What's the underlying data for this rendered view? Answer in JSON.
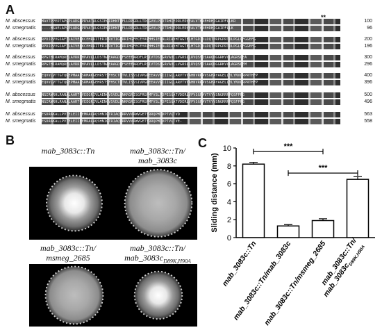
{
  "panels": {
    "a": "A",
    "b": "B",
    "c": "C"
  },
  "alignment": {
    "blocks": [
      {
        "rows": [
          {
            "name": "M. abscessus",
            "seq": "MAVTPPEDTAPGPLADGAPRVATALGSIEGIRHNTVFLLRPGRLLTDCGVVLPLDTRHIEDRLEDVEALVTHAEHDHIGAIPFLLKR",
            "end": "100"
          },
          {
            "name": "M. smegmatis",
            "seq": "----MSAELAPGPLADGAPRVATALGSIEGIRHNTVFLLRPGRLLTDCGVVLPLDTRHIEDRLEDVEALVTHAEHDHIGAIPFLLK",
            "end": "96"
          }
        ]
      },
      {
        "rows": [
          {
            "name": "M. abscessus",
            "seq": "RPDIPVVGSAFTLAIVEAKCEHRRITERIPRVTIGERRIHGFECEYAVHHSIEDALRIAVHTAGTELHTGDIKLDQTPRPGPRTDLPGLGFGGEFG",
            "end": "200"
          },
          {
            "name": "M. smegmatis",
            "seq": "RPDIPVVGSAFTLAIVEAKCEHRRITERIPRVTIGERRIHGFECEYAVHHSIEDALRIAVHTAGTELHTGDIKLDQTPRPGPRTDLPGLGFGGEFG",
            "end": "196"
          }
        ]
      },
      {
        "rows": [
          {
            "name": "M. abscessus",
            "seq": "RPGTHIRAMQRELAVRRTHPAVLLLDSTNAEAAGDLFSEEEARDFLRSIVTDSVGRVAVCLVGRSLLRVQSVISAAQDGGRKVVLAGRSLEA",
            "end": "300"
          },
          {
            "name": "M. smegmatis",
            "seq": "RPGTHIRAMQRELAVRRTHPAVLLLDSTNAEAAGDLFSEEEARDFLRSIVTDSVGRVAVCLVGRSLLRVQSVISAAQDGGRKVVLAGRSLEM",
            "end": "296"
          }
        ]
      },
      {
        "rows": [
          {
            "name": "M. abscessus",
            "seq": "EQVVLVTTGTQGEPMAALSRMAKGEHRSTSFHSCTDTVLISSSIVPGNEEAVVGIIIGLLARVTVVAHNVRRAVSGHAYAGELLYLYNVLRPRTHFP",
            "end": "400"
          },
          {
            "name": "M. smegmatis",
            "seq": "EQVVLVTTGTQGEPMAALSRMAKGEHRSTSFHSCTDTVLISSSIVPGNEEAVVGIIIGLLARVTVVAHNVRRAVSGHAYAGELLYLYNVLRPRTHFP",
            "end": "396"
          }
        ]
      },
      {
        "rows": [
          {
            "name": "M. abscessus",
            "seq": "NGIRWRHLRANALAARTGVEEGRIVLAENGVSVDLHNKRGRISGFRGPMFVSLVDPESGATVDERLVPVSGFAVTVYVSNGRRRPQSFPRG",
            "end": "500"
          },
          {
            "name": "M. smegmatis",
            "seq": "NGIRWRHLRANALAARTGVEEGRIVLAENGVSVDLHNKRGRISGFRGPMFVSLVDPESGATVDERLVPVSGFAVTVYVSNGRRRPQSFPRG",
            "end": "496"
          }
        ]
      },
      {
        "rows": [
          {
            "name": "M. abscessus",
            "seq": "ESDRAKALLPVTELEIIEEMRALAQSHNIGTRIAQVRRVVVRWVGETYRRQPMIVPTVLTVD",
            "end": "563"
          },
          {
            "name": "M. smegmatis",
            "seq": "ESDRAKALLPVTELEIIEEMRALAQSHNIGTRIAQVRRVVVRWVGETYRRQPMIVPTVLTVE-",
            "end": "558"
          }
        ]
      }
    ],
    "marks": "**"
  },
  "colonies": [
    {
      "label_lines": [
        "mab_3083c::Tn"
      ],
      "subscript": ""
    },
    {
      "label_lines": [
        "mab_3083c::Tn/",
        "mab_3083c"
      ],
      "subscript": ""
    },
    {
      "label_lines": [
        "mab_3083c::Tn/",
        "msmeg_2685"
      ],
      "subscript": ""
    },
    {
      "label_lines": [
        "mab_3083c::Tn/",
        "mab_3083c"
      ],
      "subscript": "D89K,H90A"
    }
  ],
  "chart_data": {
    "type": "bar",
    "ylabel": "Sliding distance (mm)",
    "ylim": [
      0,
      10
    ],
    "yticks": [
      "0",
      "2",
      "4",
      "6",
      "8",
      "10"
    ],
    "categories": [
      {
        "main": "mab_3083c::Tn",
        "sub": ""
      },
      {
        "main": "mab_3083c::Tn/mab_3083c",
        "sub": ""
      },
      {
        "main": "mab_3083c::Tn/msmeg_2685",
        "sub": ""
      },
      {
        "main": "mab_3083c::Tn/",
        "main2": "mab_3083c",
        "sub": "D89K,H90A"
      }
    ],
    "values": [
      8.2,
      1.3,
      1.9,
      6.5
    ],
    "errors": [
      0.2,
      0.15,
      0.2,
      0.3
    ],
    "significance": [
      {
        "from": 0,
        "to": 2,
        "label": "***"
      },
      {
        "from": 1,
        "to": 3,
        "label": "***"
      }
    ],
    "bar_color": "#ffffff",
    "edge_color": "#000000"
  }
}
